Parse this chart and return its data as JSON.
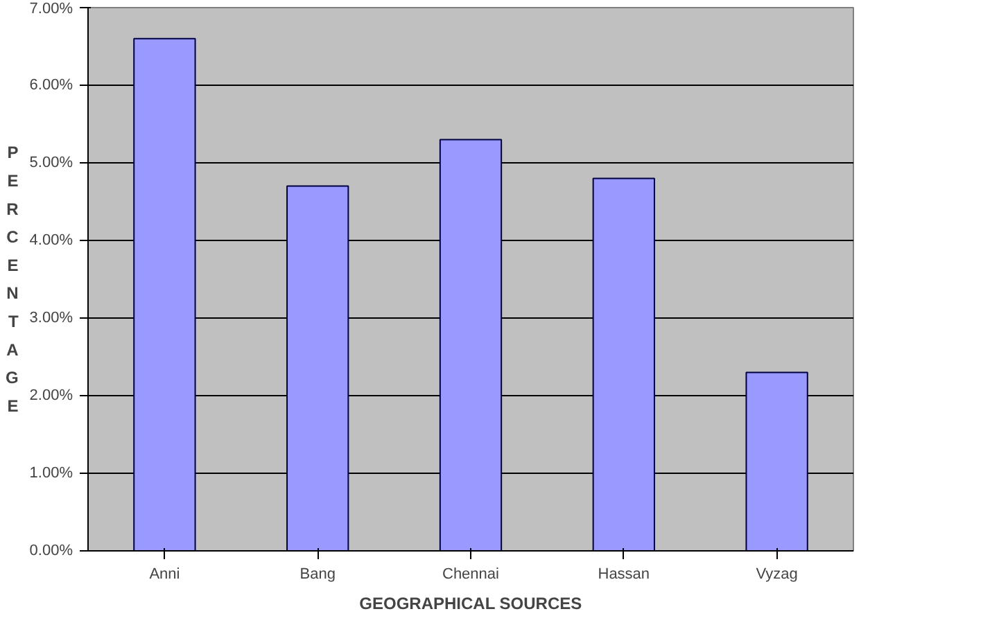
{
  "chart_data": {
    "type": "bar",
    "xlabel": "GEOGRAPHICAL SOURCES",
    "ylabel": "PERCENTAGE",
    "categories": [
      "Anni",
      "Bang",
      "Chennai",
      "Hassan",
      "Vyzag"
    ],
    "series": [
      {
        "color": "#9999ff",
        "values": [
          6.6,
          4.7,
          5.3,
          4.8,
          2.3
        ]
      }
    ],
    "ylim": [
      0,
      7
    ],
    "yticks": [
      {
        "value": 0,
        "label": "0.00%"
      },
      {
        "value": 1,
        "label": "1.00%"
      },
      {
        "value": 2,
        "label": "2.00%"
      },
      {
        "value": 3,
        "label": "3.00%"
      },
      {
        "value": 4,
        "label": "4.00%"
      },
      {
        "value": 5,
        "label": "5.00%"
      },
      {
        "value": 6,
        "label": "6.00%"
      },
      {
        "value": 7,
        "label": "7.00%"
      }
    ],
    "grid": "y"
  }
}
